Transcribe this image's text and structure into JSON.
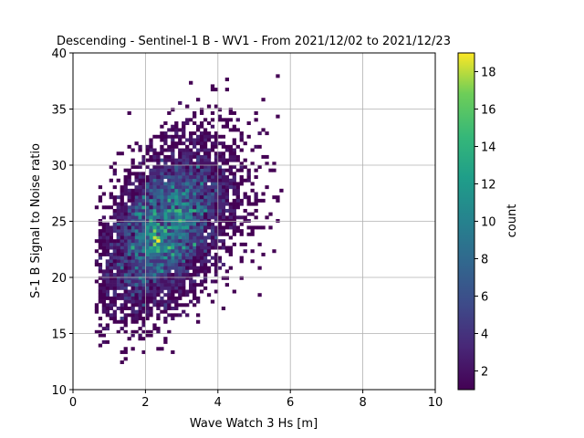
{
  "chart_data": {
    "type": "heatmap",
    "title": "Descending - Sentinel-1 B - WV1 - From 2021/12/02 to 2021/12/23",
    "xlabel": "Wave Watch 3 Hs [m]",
    "ylabel": "S-1 B Signal to Noise ratio",
    "xlim": [
      0,
      10
    ],
    "ylim": [
      10,
      40
    ],
    "xticks": [
      0,
      2,
      4,
      6,
      8,
      10
    ],
    "yticks": [
      10,
      15,
      20,
      25,
      30,
      35,
      40
    ],
    "grid": true,
    "bin_size": {
      "x": 0.1,
      "y": 0.3
    },
    "colormap": "viridis",
    "colorbar": {
      "label": "count",
      "range": [
        1,
        19
      ],
      "ticks": [
        2,
        4,
        6,
        8,
        10,
        12,
        14,
        16,
        18
      ]
    },
    "distribution_peak": {
      "x": 2.25,
      "y": 23.0,
      "count": 19
    },
    "cells": [
      [
        2.2,
        23.4,
        18
      ],
      [
        2.3,
        23.1,
        19
      ],
      [
        2.2,
        22.8,
        17
      ],
      [
        2.3,
        22.5,
        14
      ],
      [
        2.1,
        23.7,
        13
      ],
      [
        2.0,
        24.3,
        12
      ],
      [
        1.9,
        26.1,
        13
      ],
      [
        1.9,
        27.0,
        11
      ],
      [
        1.8,
        25.5,
        12
      ],
      [
        2.0,
        22.2,
        11
      ],
      [
        2.4,
        23.7,
        10
      ],
      [
        1.7,
        24.0,
        10
      ],
      [
        2.1,
        25.2,
        11
      ],
      [
        2.2,
        26.4,
        9
      ],
      [
        2.5,
        24.6,
        9
      ],
      [
        1.6,
        22.8,
        9
      ],
      [
        1.8,
        21.6,
        10
      ],
      [
        2.6,
        22.2,
        8
      ],
      [
        2.4,
        27.3,
        8
      ],
      [
        2.0,
        28.2,
        7
      ],
      [
        1.5,
        25.8,
        7
      ],
      [
        2.7,
        25.5,
        7
      ],
      [
        2.3,
        20.4,
        9
      ],
      [
        1.9,
        19.8,
        8
      ],
      [
        2.8,
        23.4,
        6
      ]
    ]
  }
}
